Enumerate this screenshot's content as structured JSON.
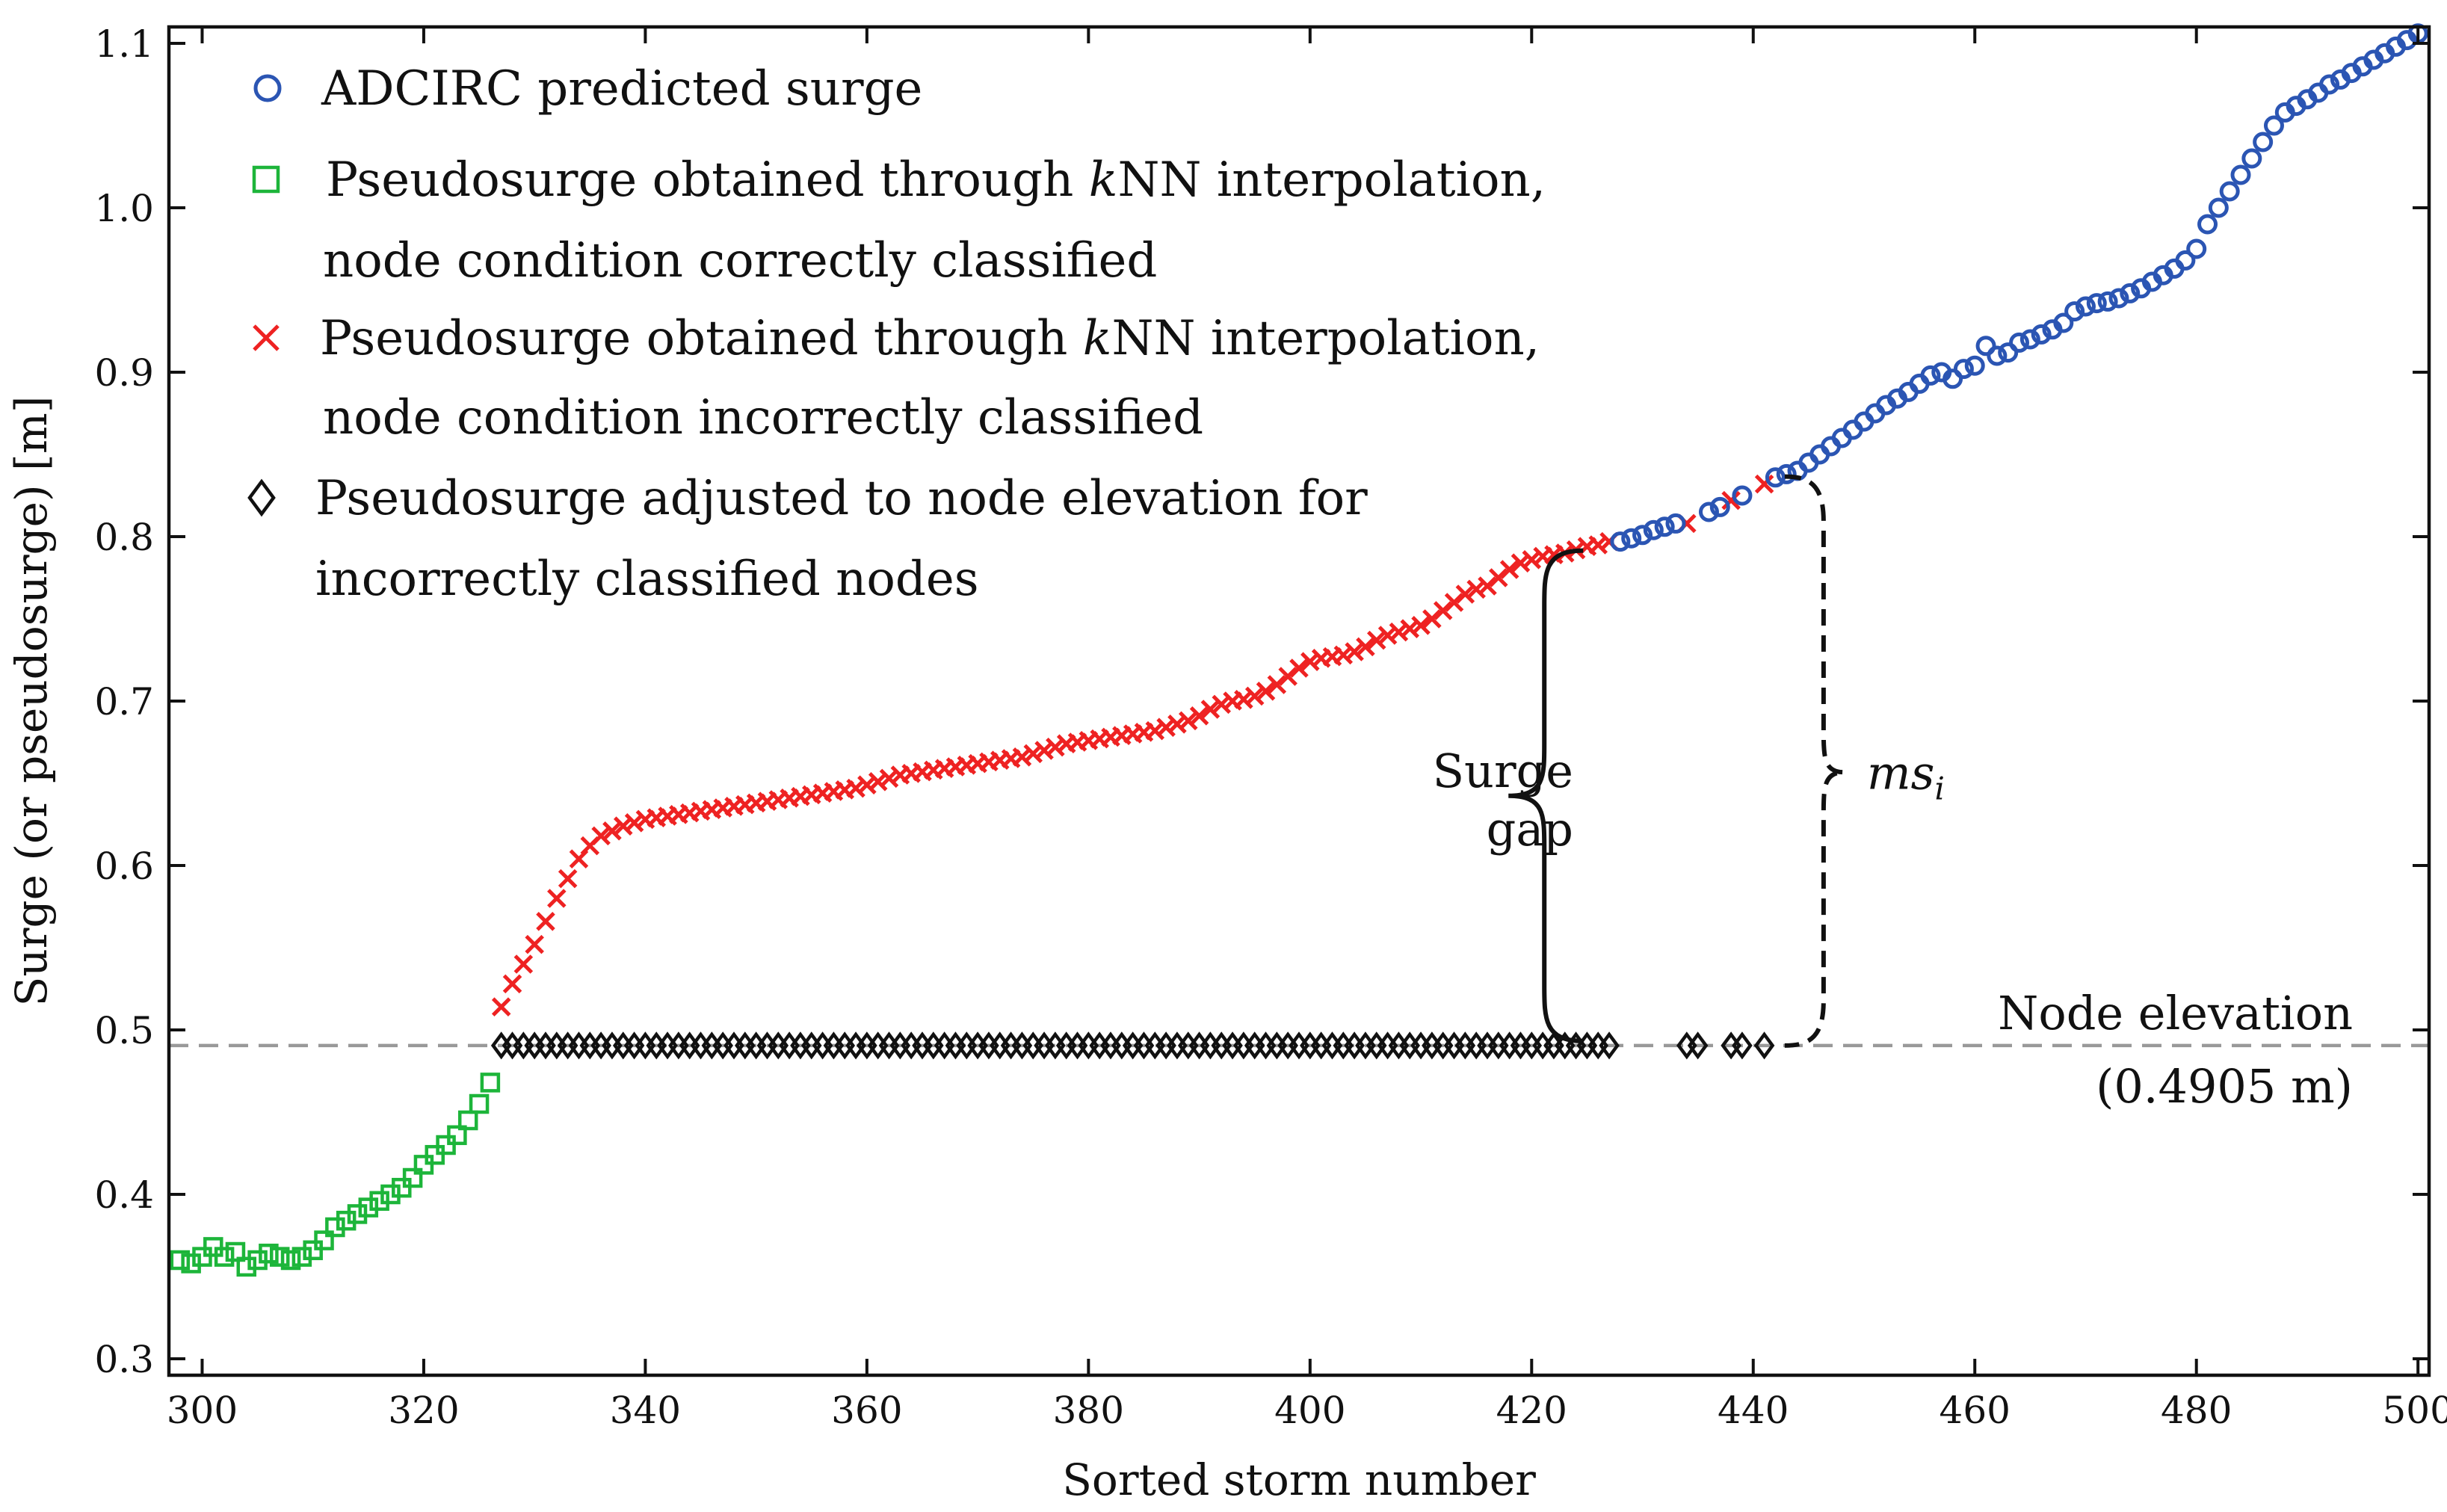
{
  "chart_data": {
    "type": "scatter",
    "xlabel": "Sorted storm number",
    "ylabel": "Surge (or pseudosurge) [m]",
    "xlim": [
      297,
      501
    ],
    "ylim": [
      0.29,
      1.11
    ],
    "x_ticks": [
      300,
      320,
      340,
      360,
      380,
      400,
      420,
      440,
      460,
      480,
      500
    ],
    "y_ticks": [
      0.3,
      0.4,
      0.5,
      0.6,
      0.7,
      0.8,
      0.9,
      1.0,
      1.1
    ],
    "x_tick_labels": [
      "300",
      "320",
      "340",
      "360",
      "380",
      "400",
      "420",
      "440",
      "460",
      "480",
      "500"
    ],
    "y_tick_labels": [
      "0.3",
      "0.4",
      "0.5",
      "0.6",
      "0.7",
      "0.8",
      "0.9",
      "1.0",
      "1.1"
    ],
    "legend_position": "top-left",
    "series": [
      {
        "name": "ADCIRC predicted surge",
        "marker": "circle",
        "color": "#2b55b3",
        "points": [
          [
            428,
            0.797
          ],
          [
            429,
            0.799
          ],
          [
            430,
            0.801
          ],
          [
            431,
            0.804
          ],
          [
            432,
            0.806
          ],
          [
            433,
            0.808
          ],
          [
            436,
            0.815
          ],
          [
            437,
            0.818
          ],
          [
            439,
            0.825
          ],
          [
            442,
            0.836
          ],
          [
            443,
            0.838
          ],
          [
            444,
            0.84
          ],
          [
            445,
            0.845
          ],
          [
            446,
            0.85
          ],
          [
            447,
            0.855
          ],
          [
            448,
            0.86
          ],
          [
            449,
            0.865
          ],
          [
            450,
            0.87
          ],
          [
            451,
            0.875
          ],
          [
            452,
            0.88
          ],
          [
            453,
            0.884
          ],
          [
            454,
            0.888
          ],
          [
            455,
            0.893
          ],
          [
            456,
            0.898
          ],
          [
            457,
            0.9
          ],
          [
            458,
            0.896
          ],
          [
            459,
            0.902
          ],
          [
            460,
            0.904
          ],
          [
            461,
            0.916
          ],
          [
            462,
            0.91
          ],
          [
            463,
            0.912
          ],
          [
            464,
            0.918
          ],
          [
            465,
            0.92
          ],
          [
            466,
            0.923
          ],
          [
            467,
            0.926
          ],
          [
            468,
            0.93
          ],
          [
            469,
            0.937
          ],
          [
            470,
            0.94
          ],
          [
            471,
            0.942
          ],
          [
            472,
            0.943
          ],
          [
            473,
            0.945
          ],
          [
            474,
            0.948
          ],
          [
            475,
            0.951
          ],
          [
            476,
            0.955
          ],
          [
            477,
            0.959
          ],
          [
            478,
            0.963
          ],
          [
            479,
            0.968
          ],
          [
            480,
            0.975
          ],
          [
            481,
            0.99
          ],
          [
            482,
            1.0
          ],
          [
            483,
            1.01
          ],
          [
            484,
            1.02
          ],
          [
            485,
            1.03
          ],
          [
            486,
            1.04
          ],
          [
            487,
            1.05
          ],
          [
            488,
            1.058
          ],
          [
            489,
            1.062
          ],
          [
            490,
            1.066
          ],
          [
            491,
            1.07
          ],
          [
            492,
            1.075
          ],
          [
            493,
            1.078
          ],
          [
            494,
            1.082
          ],
          [
            495,
            1.086
          ],
          [
            496,
            1.09
          ],
          [
            497,
            1.094
          ],
          [
            498,
            1.098
          ],
          [
            499,
            1.102
          ],
          [
            500,
            1.106
          ]
        ]
      },
      {
        "name": "Pseudosurge obtained through kNN interpolation, node condition correctly classified",
        "marker": "square",
        "color": "#1db53a",
        "points": [
          [
            298,
            0.36
          ],
          [
            299,
            0.358
          ],
          [
            300,
            0.362
          ],
          [
            301,
            0.368
          ],
          [
            302,
            0.362
          ],
          [
            303,
            0.365
          ],
          [
            304,
            0.356
          ],
          [
            305,
            0.36
          ],
          [
            306,
            0.364
          ],
          [
            307,
            0.362
          ],
          [
            308,
            0.36
          ],
          [
            309,
            0.362
          ],
          [
            310,
            0.366
          ],
          [
            311,
            0.372
          ],
          [
            312,
            0.38
          ],
          [
            313,
            0.384
          ],
          [
            314,
            0.388
          ],
          [
            315,
            0.392
          ],
          [
            316,
            0.396
          ],
          [
            317,
            0.4
          ],
          [
            318,
            0.404
          ],
          [
            319,
            0.41
          ],
          [
            320,
            0.418
          ],
          [
            321,
            0.424
          ],
          [
            322,
            0.43
          ],
          [
            323,
            0.436
          ],
          [
            324,
            0.445
          ],
          [
            325,
            0.455
          ],
          [
            326,
            0.468
          ]
        ]
      },
      {
        "name": "Pseudosurge obtained through kNN interpolation, node condition incorrectly classified",
        "marker": "x",
        "color": "#ee2222",
        "points": [
          [
            327,
            0.514
          ],
          [
            328,
            0.528
          ],
          [
            329,
            0.54
          ],
          [
            330,
            0.552
          ],
          [
            331,
            0.566
          ],
          [
            332,
            0.58
          ],
          [
            333,
            0.592
          ],
          [
            334,
            0.604
          ],
          [
            335,
            0.612
          ],
          [
            336,
            0.618
          ],
          [
            337,
            0.621
          ],
          [
            338,
            0.624
          ],
          [
            339,
            0.626
          ],
          [
            340,
            0.628
          ],
          [
            341,
            0.629
          ],
          [
            342,
            0.63
          ],
          [
            343,
            0.631
          ],
          [
            344,
            0.632
          ],
          [
            345,
            0.633
          ],
          [
            346,
            0.634
          ],
          [
            347,
            0.635
          ],
          [
            348,
            0.636
          ],
          [
            349,
            0.637
          ],
          [
            350,
            0.638
          ],
          [
            351,
            0.639
          ],
          [
            352,
            0.64
          ],
          [
            353,
            0.641
          ],
          [
            354,
            0.642
          ],
          [
            355,
            0.643
          ],
          [
            356,
            0.644
          ],
          [
            357,
            0.645
          ],
          [
            358,
            0.646
          ],
          [
            359,
            0.647
          ],
          [
            360,
            0.649
          ],
          [
            361,
            0.651
          ],
          [
            362,
            0.653
          ],
          [
            363,
            0.655
          ],
          [
            364,
            0.656
          ],
          [
            365,
            0.657
          ],
          [
            366,
            0.658
          ],
          [
            367,
            0.659
          ],
          [
            368,
            0.66
          ],
          [
            369,
            0.661
          ],
          [
            370,
            0.662
          ],
          [
            371,
            0.663
          ],
          [
            372,
            0.664
          ],
          [
            373,
            0.665
          ],
          [
            374,
            0.666
          ],
          [
            375,
            0.668
          ],
          [
            376,
            0.67
          ],
          [
            377,
            0.672
          ],
          [
            378,
            0.674
          ],
          [
            379,
            0.675
          ],
          [
            380,
            0.676
          ],
          [
            381,
            0.677
          ],
          [
            382,
            0.678
          ],
          [
            383,
            0.679
          ],
          [
            384,
            0.68
          ],
          [
            385,
            0.681
          ],
          [
            386,
            0.682
          ],
          [
            387,
            0.684
          ],
          [
            388,
            0.686
          ],
          [
            389,
            0.688
          ],
          [
            390,
            0.691
          ],
          [
            391,
            0.695
          ],
          [
            392,
            0.698
          ],
          [
            393,
            0.7
          ],
          [
            394,
            0.701
          ],
          [
            395,
            0.703
          ],
          [
            396,
            0.706
          ],
          [
            397,
            0.71
          ],
          [
            398,
            0.715
          ],
          [
            399,
            0.72
          ],
          [
            400,
            0.724
          ],
          [
            401,
            0.726
          ],
          [
            402,
            0.727
          ],
          [
            403,
            0.728
          ],
          [
            404,
            0.73
          ],
          [
            405,
            0.733
          ],
          [
            406,
            0.737
          ],
          [
            407,
            0.74
          ],
          [
            408,
            0.742
          ],
          [
            409,
            0.744
          ],
          [
            410,
            0.746
          ],
          [
            411,
            0.75
          ],
          [
            412,
            0.755
          ],
          [
            413,
            0.76
          ],
          [
            414,
            0.765
          ],
          [
            415,
            0.768
          ],
          [
            416,
            0.77
          ],
          [
            417,
            0.775
          ],
          [
            418,
            0.78
          ],
          [
            419,
            0.784
          ],
          [
            420,
            0.786
          ],
          [
            421,
            0.788
          ],
          [
            422,
            0.789
          ],
          [
            423,
            0.79
          ],
          [
            424,
            0.792
          ],
          [
            425,
            0.794
          ],
          [
            426,
            0.795
          ],
          [
            427,
            0.797
          ],
          [
            434,
            0.808
          ],
          [
            438,
            0.822
          ],
          [
            441,
            0.832
          ]
        ]
      },
      {
        "name": "Pseudosurge adjusted to node elevation for incorrectly classified nodes",
        "marker": "diamond",
        "color": "#111111",
        "y_constant": 0.4905,
        "x": [
          327,
          328,
          329,
          330,
          331,
          332,
          333,
          334,
          335,
          336,
          337,
          338,
          339,
          340,
          341,
          342,
          343,
          344,
          345,
          346,
          347,
          348,
          349,
          350,
          351,
          352,
          353,
          354,
          355,
          356,
          357,
          358,
          359,
          360,
          361,
          362,
          363,
          364,
          365,
          366,
          367,
          368,
          369,
          370,
          371,
          372,
          373,
          374,
          375,
          376,
          377,
          378,
          379,
          380,
          381,
          382,
          383,
          384,
          385,
          386,
          387,
          388,
          389,
          390,
          391,
          392,
          393,
          394,
          395,
          396,
          397,
          398,
          399,
          400,
          401,
          402,
          403,
          404,
          405,
          406,
          407,
          408,
          409,
          410,
          411,
          412,
          413,
          414,
          415,
          416,
          417,
          418,
          419,
          420,
          421,
          422,
          423,
          424,
          425,
          426,
          427,
          434,
          435,
          438,
          439,
          441
        ]
      }
    ],
    "reference_line": {
      "y": 0.4905,
      "style": "dashed",
      "color": "#999999",
      "label_line1": "Node elevation",
      "label_line2": "(0.4905 m)"
    },
    "annotations": {
      "surge_gap": {
        "label_line1": "Surge",
        "label_line2": "gap",
        "x": 426,
        "y_from": 0.4905,
        "y_to": 0.797
      },
      "ms_i": {
        "label": "ms",
        "subscript": "i",
        "x": 445,
        "y_from": 0.4905,
        "y_to": 0.832
      }
    },
    "legend": [
      {
        "marker": "circle",
        "color": "#2b55b3",
        "line1": "ADCIRC predicted surge"
      },
      {
        "marker": "square",
        "color": "#1db53a",
        "line1_pre": "Pseudosurge obtained through ",
        "line1_italic": "k",
        "line1_post": "NN interpolation,",
        "line2": "node condition correctly classified"
      },
      {
        "marker": "x",
        "color": "#ee2222",
        "line1_pre": "Pseudosurge obtained through ",
        "line1_italic": "k",
        "line1_post": "NN interpolation,",
        "line2": "node condition incorrectly classified"
      },
      {
        "marker": "diamond",
        "color": "#111111",
        "line1": "Pseudosurge adjusted to node elevation for",
        "line2": "incorrectly classified nodes"
      }
    ]
  }
}
